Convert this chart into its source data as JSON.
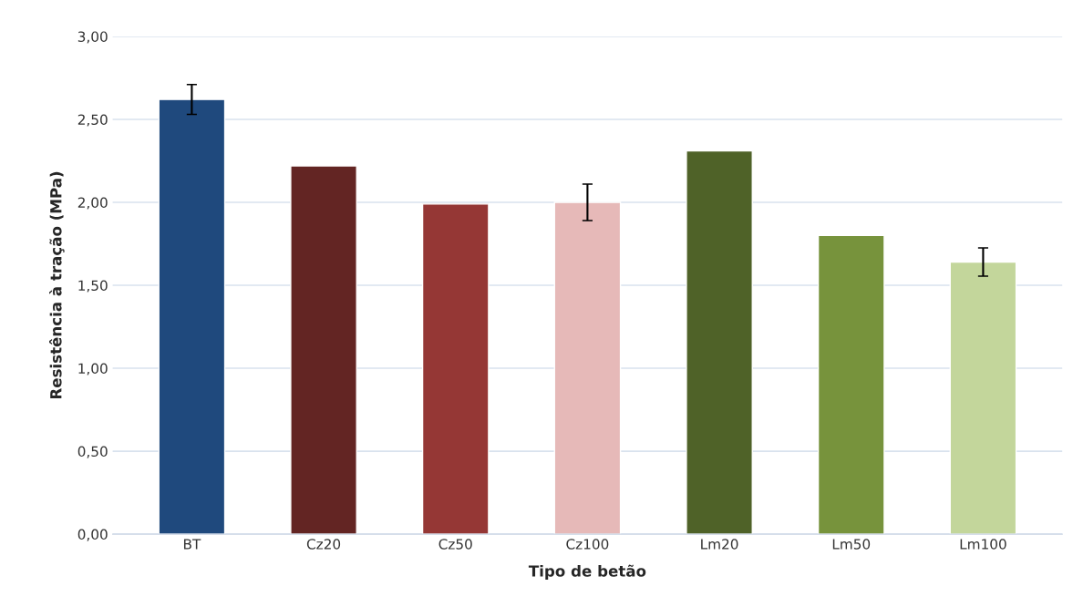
{
  "chart_data": {
    "type": "bar",
    "xlabel": "Tipo de betão",
    "ylabel": "Resistência à tração (MPa)",
    "categories": [
      "BT",
      "Cz20",
      "Cz50",
      "Cz100",
      "Lm20",
      "Lm50",
      "Lm100"
    ],
    "values": [
      2.62,
      2.22,
      1.99,
      2.0,
      2.31,
      1.8,
      1.64
    ],
    "colors": [
      "#1f497d",
      "#632523",
      "#953735",
      "#e6b9b8",
      "#4f6228",
      "#77933c",
      "#c3d69b"
    ],
    "errors": [
      0.09,
      null,
      null,
      0.11,
      null,
      null,
      0.085
    ],
    "ylim": [
      0,
      3
    ],
    "yticks": [
      {
        "value": 0,
        "label": "0,00"
      },
      {
        "value": 0.5,
        "label": "0,50"
      },
      {
        "value": 1,
        "label": "1,00"
      },
      {
        "value": 1.5,
        "label": "1,50"
      },
      {
        "value": 2,
        "label": "2,00"
      },
      {
        "value": 2.5,
        "label": "2,50"
      },
      {
        "value": 3,
        "label": "3,00"
      }
    ],
    "grid": "y",
    "legend": false
  }
}
